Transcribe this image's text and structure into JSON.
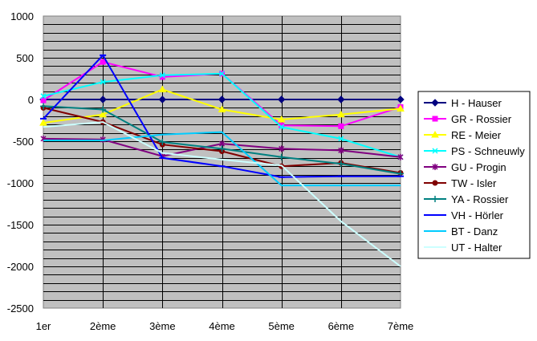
{
  "chart_data": {
    "type": "line",
    "categories": [
      "1er",
      "2ème",
      "3ème",
      "4ème",
      "5ème",
      "6ème",
      "7ème"
    ],
    "ylim": [
      -2500,
      1000
    ],
    "y_ticks": [
      "1000",
      "500",
      "0",
      "-500",
      "-1000",
      "-1500",
      "-2000",
      "-2500"
    ],
    "y_tick_values": [
      1000,
      500,
      0,
      -500,
      -1000,
      -1500,
      -2000,
      -2500
    ],
    "grid": true,
    "plot_background": "#c0c0c0",
    "legend_position": "right",
    "series": [
      {
        "name": "H - Hauser",
        "color": "#000080",
        "marker": "diamond",
        "values": [
          0,
          0,
          0,
          0,
          0,
          0,
          0
        ]
      },
      {
        "name": "GR - Rossier",
        "color": "#ff00ff",
        "marker": "square",
        "values": [
          -10,
          450,
          270,
          310,
          -310,
          -320,
          -90
        ]
      },
      {
        "name": "RE - Meier",
        "color": "#ffff00",
        "marker": "triangle",
        "values": [
          -280,
          -180,
          120,
          -120,
          -240,
          -180,
          -110
        ]
      },
      {
        "name": "PS - Schneuwly",
        "color": "#00ffff",
        "marker": "x",
        "values": [
          40,
          210,
          290,
          310,
          -330,
          -470,
          -690
        ]
      },
      {
        "name": "GU - Progin",
        "color": "#800080",
        "marker": "star",
        "values": [
          -470,
          -480,
          -680,
          -530,
          -590,
          -610,
          -690
        ]
      },
      {
        "name": "TW - Isler",
        "color": "#800000",
        "marker": "circle",
        "values": [
          -100,
          -270,
          -540,
          -620,
          -800,
          -760,
          -880
        ]
      },
      {
        "name": "YA - Rossier",
        "color": "#008080",
        "marker": "plus",
        "values": [
          -80,
          -120,
          -510,
          -590,
          -690,
          -770,
          -890
        ]
      },
      {
        "name": "VH - Hörler",
        "color": "#0000ff",
        "marker": "dash",
        "values": [
          -230,
          530,
          -700,
          -800,
          -930,
          -920,
          -920
        ]
      },
      {
        "name": "BT - Danz",
        "color": "#00ccff",
        "marker": "none",
        "values": [
          -490,
          -490,
          -420,
          -390,
          -1030,
          -1030,
          -1030
        ]
      },
      {
        "name": "UT - Halter",
        "color": "#ccffff",
        "marker": "none",
        "values": [
          -330,
          -270,
          -640,
          -720,
          -790,
          -1460,
          -2000
        ]
      }
    ]
  }
}
